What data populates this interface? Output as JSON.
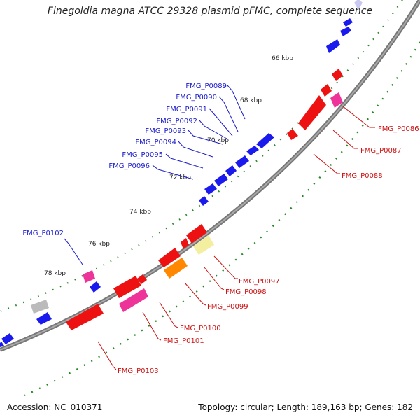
{
  "title": "Finegoldia magna ATCC 29328 plasmid pFMC, complete sequence",
  "footer": {
    "accession": "Accession: NC_010371",
    "summary": "Topology: circular; Length: 189,163 bp; Genes: 182"
  },
  "colors": {
    "forward_gene": "#1a1aee",
    "reverse_gene": "#ee1111",
    "pink_gene": "#ee3399",
    "orange_gene": "#ff8800",
    "yellow_gene": "#f4eea0",
    "grey_gene": "#bbbbbb",
    "backbone": "#888888",
    "tick": "#228822",
    "forward_label": "#1a1acc",
    "reverse_label": "#cc1111"
  },
  "scale_labels": [
    "66 kbp",
    "68 kbp",
    "70 kbp",
    "72 kbp",
    "74 kbp",
    "76 kbp",
    "78 kbp"
  ],
  "forward_gene_labels": [
    "FMG_P0089",
    "FMG_P0090",
    "FMG_P0091",
    "FMG_P0092",
    "FMG_P0093",
    "FMG_P0094",
    "FMG_P0095",
    "FMG_P0096",
    "FMG_P0102"
  ],
  "reverse_gene_labels": [
    "FMG_P0086",
    "FMG_P0087",
    "FMG_P0088",
    "FMG_P0097",
    "FMG_P0098",
    "FMG_P0099",
    "FMG_P0100",
    "FMG_P0101",
    "FMG_P0103"
  ]
}
